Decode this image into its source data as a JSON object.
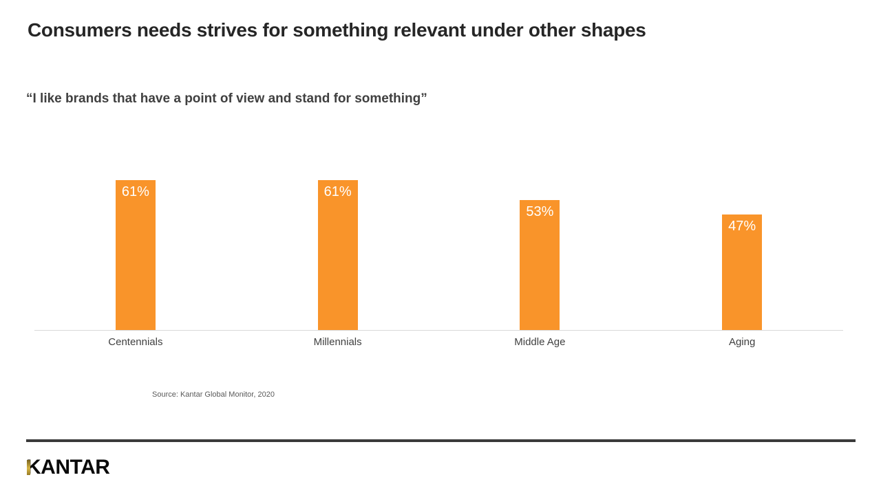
{
  "slide": {
    "title": "Consumers needs strives for something relevant under other shapes",
    "subtitle": "“I like brands that have a point of view and stand for something”",
    "source": "Source: Kantar Global Monitor, 2020",
    "logo_text": "KANTAR"
  },
  "colors": {
    "bar": "#f9942a",
    "bar_value_label": "#ffffff",
    "title_text": "#262626",
    "subtitle_text": "#404040",
    "category_label": "#404040",
    "axis_line": "#d8d8d8",
    "source_text": "#595959",
    "footer_rule": "#3a3a3a",
    "logo_black": "#0a0a0a",
    "logo_gold": "#d6b545"
  },
  "chart_data": {
    "type": "bar",
    "categories": [
      "Centennials",
      "Millennials",
      "Middle Age",
      "Aging"
    ],
    "values": [
      61,
      61,
      53,
      47
    ],
    "value_labels": [
      "61%",
      "61%",
      "53%",
      "47%"
    ],
    "title": "Consumers needs strives for something relevant under other shapes",
    "subtitle": "“I like brands that have a point of view and stand for something”",
    "xlabel": "",
    "ylabel": "",
    "ylim": [
      0,
      100
    ],
    "grid": false,
    "legend": false,
    "bar_color": "#f9942a",
    "data_label_position": "inside-top",
    "source": "Source: Kantar Global Monitor, 2020"
  }
}
